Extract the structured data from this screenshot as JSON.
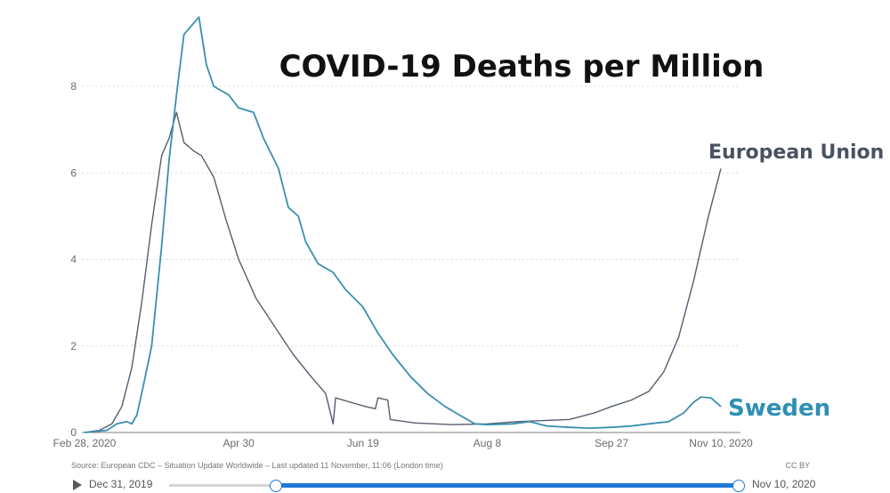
{
  "chart_data": {
    "type": "line",
    "title": "COVID-19 Deaths per Million",
    "xlabel": "",
    "ylabel": "",
    "ylim": [
      0,
      8.8
    ],
    "x_ticks": [
      "Feb 28, 2020",
      "Apr 30",
      "Jun 19",
      "Aug 8",
      "Sep 27",
      "Nov 10, 2020"
    ],
    "y_ticks": [
      "0",
      "2",
      "4",
      "6",
      "8"
    ],
    "grid": true,
    "legend": "inline labels at line ends",
    "series": [
      {
        "name": "European Union",
        "color": "#555e6e",
        "points": [
          [
            "2020-02-28",
            0.0
          ],
          [
            "2020-03-05",
            0.05
          ],
          [
            "2020-03-10",
            0.2
          ],
          [
            "2020-03-14",
            0.6
          ],
          [
            "2020-03-18",
            1.5
          ],
          [
            "2020-03-22",
            3.0
          ],
          [
            "2020-03-26",
            4.8
          ],
          [
            "2020-03-30",
            6.4
          ],
          [
            "2020-04-02",
            6.8
          ],
          [
            "2020-04-05",
            7.4
          ],
          [
            "2020-04-08",
            6.7
          ],
          [
            "2020-04-12",
            6.5
          ],
          [
            "2020-04-15",
            6.4
          ],
          [
            "2020-04-20",
            5.9
          ],
          [
            "2020-04-25",
            4.9
          ],
          [
            "2020-04-30",
            4.0
          ],
          [
            "2020-05-07",
            3.1
          ],
          [
            "2020-05-15",
            2.4
          ],
          [
            "2020-05-22",
            1.8
          ],
          [
            "2020-05-29",
            1.3
          ],
          [
            "2020-06-04",
            0.9
          ],
          [
            "2020-06-07",
            0.2
          ],
          [
            "2020-06-08",
            0.8
          ],
          [
            "2020-06-14",
            0.7
          ],
          [
            "2020-06-20",
            0.6
          ],
          [
            "2020-06-24",
            0.55
          ],
          [
            "2020-06-25",
            0.8
          ],
          [
            "2020-06-29",
            0.75
          ],
          [
            "2020-06-30",
            0.3
          ],
          [
            "2020-07-10",
            0.22
          ],
          [
            "2020-07-25",
            0.18
          ],
          [
            "2020-08-08",
            0.2
          ],
          [
            "2020-08-20",
            0.25
          ],
          [
            "2020-09-01",
            0.28
          ],
          [
            "2020-09-10",
            0.3
          ],
          [
            "2020-09-20",
            0.45
          ],
          [
            "2020-09-27",
            0.6
          ],
          [
            "2020-10-05",
            0.75
          ],
          [
            "2020-10-12",
            0.95
          ],
          [
            "2020-10-18",
            1.4
          ],
          [
            "2020-10-24",
            2.2
          ],
          [
            "2020-10-30",
            3.5
          ],
          [
            "2020-11-05",
            5.0
          ],
          [
            "2020-11-10",
            6.1
          ]
        ]
      },
      {
        "name": "Sweden",
        "color": "#3b8fb0",
        "points": [
          [
            "2020-02-28",
            0.0
          ],
          [
            "2020-03-08",
            0.05
          ],
          [
            "2020-03-12",
            0.2
          ],
          [
            "2020-03-16",
            0.25
          ],
          [
            "2020-03-18",
            0.2
          ],
          [
            "2020-03-20",
            0.4
          ],
          [
            "2020-03-22",
            0.9
          ],
          [
            "2020-03-26",
            2.0
          ],
          [
            "2020-03-30",
            4.3
          ],
          [
            "2020-04-02",
            6.3
          ],
          [
            "2020-04-05",
            7.8
          ],
          [
            "2020-04-08",
            9.2
          ],
          [
            "2020-04-11",
            9.4
          ],
          [
            "2020-04-14",
            9.6
          ],
          [
            "2020-04-17",
            8.5
          ],
          [
            "2020-04-20",
            8.0
          ],
          [
            "2020-04-26",
            7.8
          ],
          [
            "2020-04-30",
            7.5
          ],
          [
            "2020-05-06",
            7.4
          ],
          [
            "2020-05-10",
            6.8
          ],
          [
            "2020-05-16",
            6.1
          ],
          [
            "2020-05-20",
            5.2
          ],
          [
            "2020-05-24",
            5.0
          ],
          [
            "2020-05-27",
            4.4
          ],
          [
            "2020-06-01",
            3.9
          ],
          [
            "2020-06-07",
            3.7
          ],
          [
            "2020-06-12",
            3.3
          ],
          [
            "2020-06-19",
            2.9
          ],
          [
            "2020-06-25",
            2.3
          ],
          [
            "2020-07-01",
            1.8
          ],
          [
            "2020-07-08",
            1.3
          ],
          [
            "2020-07-15",
            0.9
          ],
          [
            "2020-07-22",
            0.6
          ],
          [
            "2020-07-28",
            0.4
          ],
          [
            "2020-08-03",
            0.2
          ],
          [
            "2020-08-08",
            0.18
          ],
          [
            "2020-08-18",
            0.2
          ],
          [
            "2020-08-25",
            0.25
          ],
          [
            "2020-09-01",
            0.15
          ],
          [
            "2020-09-10",
            0.12
          ],
          [
            "2020-09-18",
            0.1
          ],
          [
            "2020-09-27",
            0.12
          ],
          [
            "2020-10-05",
            0.15
          ],
          [
            "2020-10-12",
            0.2
          ],
          [
            "2020-10-20",
            0.25
          ],
          [
            "2020-10-26",
            0.45
          ],
          [
            "2020-10-30",
            0.7
          ],
          [
            "2020-11-02",
            0.82
          ],
          [
            "2020-11-06",
            0.8
          ],
          [
            "2020-11-10",
            0.6
          ]
        ]
      }
    ]
  },
  "source_note": "Source: European CDC – Situation Update Worldwide – Last updated 11 November, 11:06 (London time)",
  "license": "CC BY",
  "timeline": {
    "start_label": "Dec 31, 2019",
    "end_label": "Nov 10, 2020"
  }
}
